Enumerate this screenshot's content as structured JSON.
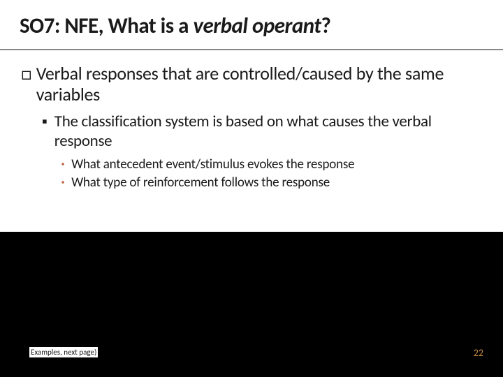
{
  "title": {
    "prefix": "SO7: NFE, What is a ",
    "italic": "verbal operant",
    "suffix": "?"
  },
  "bullets": {
    "l1_marker": "□",
    "l1_text": "Verbal responses that are controlled/caused by the same variables",
    "l2_marker": "▪",
    "l2_text": "The classification system is based on what causes the verbal response",
    "l3a_marker": "▪",
    "l3a_text": "What antecedent event/stimulus evokes the response",
    "l3b_marker": "▪",
    "l3b_text": "What type of reinforcement follows the response"
  },
  "footer_note": "Examples, next page)",
  "page_number": "22",
  "colors": {
    "background": "#000000",
    "content_bg": "#ffffff",
    "title_text": "#1a1a1a",
    "body_text": "#1a1a1a",
    "l3_marker": "#b8562f",
    "page_num": "#c78a3f"
  },
  "typography": {
    "title_fontsize": 31,
    "l1_fontsize": 26,
    "l2_fontsize": 23,
    "l3_fontsize": 19,
    "footer_fontsize": 11,
    "pagenum_fontsize": 14,
    "font_family": "Calibri"
  }
}
